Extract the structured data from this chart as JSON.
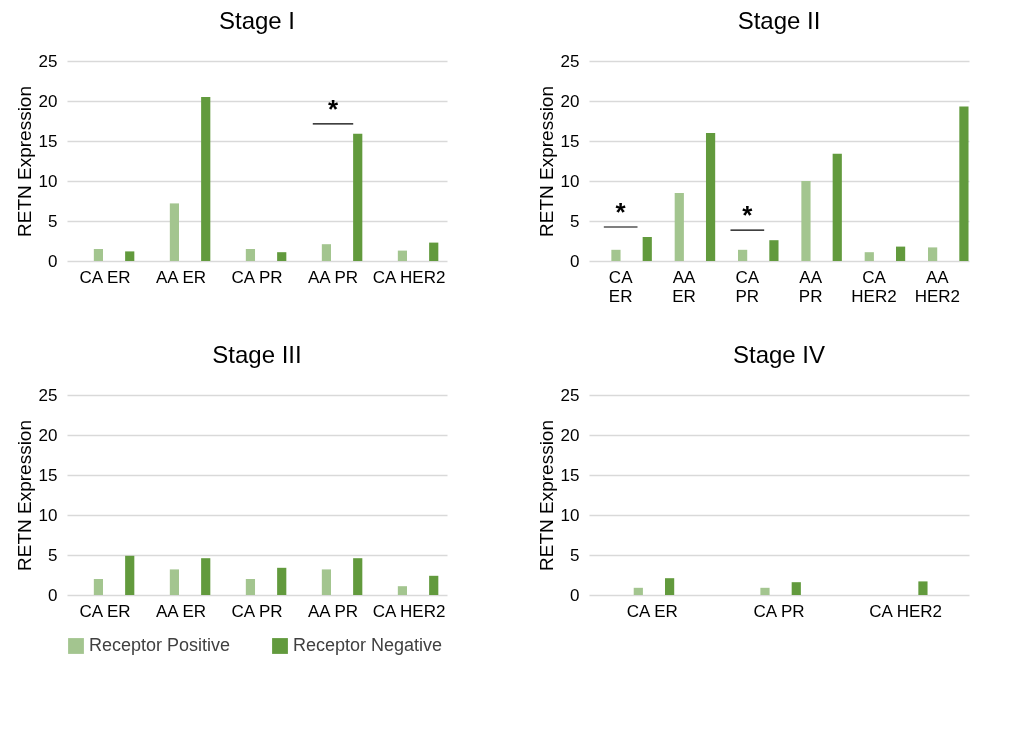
{
  "chart_data": [
    {
      "type": "bar",
      "title": "Stage I",
      "ylabel": "RETN Expression",
      "categories": [
        "CA ER",
        "AA ER",
        "CA PR",
        "AA PR",
        "CA HER2"
      ],
      "series": [
        {
          "name": "Receptor Positive",
          "color": "#a3c58f",
          "values": [
            1.5,
            7.2,
            1.5,
            2.1,
            1.3
          ]
        },
        {
          "name": "Receptor Negative",
          "color": "#629a3d",
          "values": [
            1.2,
            20.5,
            1.1,
            15.9,
            2.3
          ]
        }
      ],
      "ylim": [
        0,
        25
      ],
      "yticks": [
        0,
        5,
        10,
        15,
        20,
        25
      ],
      "grid": "y",
      "legend": "bottom",
      "annotations": [
        "*"
      ]
    },
    {
      "type": "bar",
      "title": "Stage II",
      "ylabel": "RETN Expression",
      "categories": [
        "CA ER",
        "AA ER",
        "CA PR",
        "AA PR",
        "CA HER2",
        "AA HER2"
      ],
      "series": [
        {
          "name": "Receptor Positive",
          "color": "#a3c58f",
          "values": [
            1.4,
            8.5,
            1.4,
            10.0,
            1.1,
            1.7
          ]
        },
        {
          "name": "Receptor Negative",
          "color": "#629a3d",
          "values": [
            3.0,
            16.0,
            2.6,
            13.4,
            1.8,
            19.3
          ]
        }
      ],
      "ylim": [
        0,
        25
      ],
      "yticks": [
        0,
        5,
        10,
        15,
        20,
        25
      ],
      "grid": "y",
      "legend": "bottom",
      "annotations": [
        "*",
        "*"
      ]
    },
    {
      "type": "bar",
      "title": "Stage III",
      "ylabel": "RETN Expression",
      "categories": [
        "CA ER",
        "AA ER",
        "CA PR",
        "AA PR",
        "CA HER2"
      ],
      "series": [
        {
          "name": "Receptor Positive",
          "color": "#a3c58f",
          "values": [
            2.0,
            3.2,
            2.0,
            3.2,
            1.1
          ]
        },
        {
          "name": "Receptor Negative",
          "color": "#629a3d",
          "values": [
            4.9,
            4.6,
            3.4,
            4.6,
            2.4
          ]
        }
      ],
      "ylim": [
        0,
        25
      ],
      "yticks": [
        0,
        5,
        10,
        15,
        20,
        25
      ],
      "grid": "y",
      "legend": "bottom"
    },
    {
      "type": "bar",
      "title": "Stage IV",
      "ylabel": "RETN Expression",
      "categories": [
        "CA ER",
        "CA PR",
        "CA HER2"
      ],
      "series": [
        {
          "name": "Receptor Positive",
          "color": "#a3c58f",
          "values": [
            0.9,
            0.9,
            null
          ]
        },
        {
          "name": "Receptor Negative",
          "color": "#629a3d",
          "values": [
            2.1,
            1.6,
            1.7
          ]
        }
      ],
      "ylim": [
        0,
        25
      ],
      "yticks": [
        0,
        5,
        10,
        15,
        20,
        25
      ],
      "grid": "y",
      "legend": "bottom"
    }
  ]
}
